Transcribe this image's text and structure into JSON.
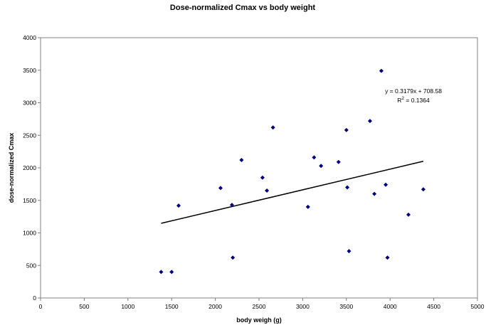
{
  "chart_data": {
    "type": "scatter",
    "title": "Dose-normalized Cmax vs body weight",
    "xlabel": "body weigh (g)",
    "ylabel": "dose-normalized Cmax",
    "xlim": [
      0,
      5000
    ],
    "ylim": [
      0,
      4000
    ],
    "x_ticks": [
      0,
      500,
      1000,
      1500,
      2000,
      2500,
      3000,
      3500,
      4000,
      4500,
      5000
    ],
    "y_ticks": [
      0,
      500,
      1000,
      1500,
      2000,
      2500,
      3000,
      3500,
      4000
    ],
    "grid": false,
    "legend": "none",
    "marker_color": "#000080",
    "points": [
      {
        "x": 1380,
        "y": 400
      },
      {
        "x": 1500,
        "y": 400
      },
      {
        "x": 1580,
        "y": 1420
      },
      {
        "x": 2060,
        "y": 1690
      },
      {
        "x": 2190,
        "y": 1430
      },
      {
        "x": 2200,
        "y": 620
      },
      {
        "x": 2300,
        "y": 2120
      },
      {
        "x": 2540,
        "y": 1850
      },
      {
        "x": 2590,
        "y": 1650
      },
      {
        "x": 2660,
        "y": 2620
      },
      {
        "x": 3060,
        "y": 1400
      },
      {
        "x": 3130,
        "y": 2160
      },
      {
        "x": 3210,
        "y": 2030
      },
      {
        "x": 3410,
        "y": 2090
      },
      {
        "x": 3500,
        "y": 2580
      },
      {
        "x": 3510,
        "y": 1700
      },
      {
        "x": 3530,
        "y": 720
      },
      {
        "x": 3770,
        "y": 2720
      },
      {
        "x": 3820,
        "y": 1600
      },
      {
        "x": 3900,
        "y": 3490
      },
      {
        "x": 3950,
        "y": 1740
      },
      {
        "x": 3970,
        "y": 620
      },
      {
        "x": 4210,
        "y": 1280
      },
      {
        "x": 4380,
        "y": 1670
      }
    ],
    "trendline": {
      "type": "linear",
      "slope": 0.3179,
      "intercept": 708.58,
      "x_start": 1380,
      "x_end": 4380,
      "equation_label": "y = 0.3179x + 708.58",
      "r2_prefix": "R",
      "r2_exponent": "2",
      "r2_suffix": " = 0.1364"
    }
  }
}
